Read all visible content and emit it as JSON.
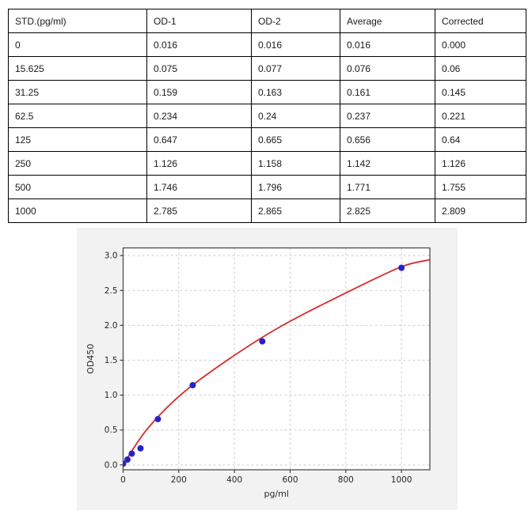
{
  "table": {
    "columns": [
      "STD.(pg/ml)",
      "OD-1",
      "OD-2",
      "Average",
      "Corrected"
    ],
    "rows": [
      [
        "0",
        "0.016",
        "0.016",
        "0.016",
        "0.000"
      ],
      [
        "15.625",
        "0.075",
        "0.077",
        "0.076",
        "0.06"
      ],
      [
        "31.25",
        "0.159",
        "0.163",
        "0.161",
        "0.145"
      ],
      [
        "62.5",
        "0.234",
        "0.24",
        "0.237",
        "0.221"
      ],
      [
        "125",
        "0.647",
        "0.665",
        "0.656",
        "0.64"
      ],
      [
        "250",
        "1.126",
        "1.158",
        "1.142",
        "1.126"
      ],
      [
        "500",
        "1.746",
        "1.796",
        "1.771",
        "1.755"
      ],
      [
        "1000",
        "2.785",
        "2.865",
        "2.825",
        "2.809"
      ]
    ]
  },
  "chart_data": {
    "type": "scatter",
    "title": "",
    "xlabel": "pg/ml",
    "ylabel": "OD450",
    "xlim": [
      0,
      1102
    ],
    "ylim": [
      -0.07,
      3.11
    ],
    "x_ticks": [
      0,
      200,
      400,
      600,
      800,
      1000
    ],
    "y_ticks": [
      0.0,
      0.5,
      1.0,
      1.5,
      2.0,
      2.5,
      3.0
    ],
    "grid": true,
    "legend": "none",
    "series": [
      {
        "name": "standard-points",
        "type": "scatter",
        "x": [
          0,
          15.625,
          31.25,
          62.5,
          125,
          250,
          500,
          1000
        ],
        "y": [
          0.016,
          0.076,
          0.161,
          0.237,
          0.656,
          1.142,
          1.771,
          2.825
        ]
      },
      {
        "name": "fit-curve",
        "type": "line",
        "x": [
          0,
          84,
          206,
          374,
          573,
          818,
          1000,
          1102
        ],
        "y": [
          0.0,
          0.5,
          1.0,
          1.5,
          2.0,
          2.5,
          2.84,
          2.94
        ]
      }
    ],
    "colors": {
      "point": "#2323cc",
      "curve": "#d62b2b",
      "grid": "#cfcfcf",
      "spine": "#3f3f3f",
      "tick_text": "#262626",
      "figure_bg": "#f2f2f2",
      "plot_bg": "#ffffff"
    }
  }
}
